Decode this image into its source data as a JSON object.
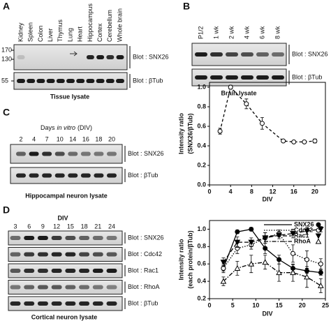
{
  "panel_a": {
    "letter": "A",
    "lanes": [
      "Kidney",
      "Spleen",
      "Colon",
      "Liver",
      "Thymus",
      "Lung",
      "Heart",
      "Hippocampus",
      "Cortex",
      "Cerebellum",
      "Whole brain"
    ],
    "mw_markers": [
      170,
      130,
      55
    ],
    "blots": [
      "Blot : SNX26",
      "Blot : βTub"
    ],
    "caption": "Tissue lysate"
  },
  "panel_b": {
    "letter": "B",
    "lanes": [
      "P1/2",
      "1 wk",
      "2 wk",
      "4 wk",
      "6 wk",
      "8 wk"
    ],
    "blots": [
      "Blot : SNX26",
      "Blot : βTub"
    ],
    "caption": "Brain lysate"
  },
  "panel_c": {
    "letter": "C",
    "title_parts": [
      "Days",
      "in vitro",
      "(DIV)"
    ],
    "lanes": [
      2,
      4,
      7,
      10,
      14,
      16,
      18,
      20
    ],
    "blots": [
      "Blot : SNX26",
      "Blot : βTub"
    ],
    "caption": "Hippocampal neuron lysate"
  },
  "panel_d": {
    "letter": "D",
    "title": "DIV",
    "lanes": [
      3,
      6,
      9,
      12,
      15,
      18,
      21,
      24
    ],
    "blots": [
      "Blot : SNX26",
      "Blot : Cdc42",
      "Blot : Rac1",
      "Blot : RhoA",
      "Blot : βTub"
    ],
    "caption": "Cortical neuron lysate"
  },
  "chart_data": [
    {
      "type": "line",
      "ylabel": [
        "Intensity ratio",
        "(SNX26/βTub)"
      ],
      "xlabel": "DIV",
      "x": [
        2,
        4,
        7,
        10,
        14,
        16,
        18,
        20
      ],
      "xlim": [
        0,
        22
      ],
      "xticks": [
        0,
        4,
        8,
        12,
        16,
        20
      ],
      "ylim": [
        0,
        1.05
      ],
      "yticks": [
        {
          "value": 0,
          "label": "0.0"
        },
        0.2,
        0.4,
        0.6,
        0.8,
        {
          "value": 1,
          "label": "1.0"
        }
      ],
      "series": [
        {
          "color": "#000000",
          "marker": "open-circle",
          "dash": "4 3",
          "values": [
            0.55,
            1.0,
            0.83,
            0.63,
            0.45,
            0.44,
            0.44,
            0.45
          ],
          "errors": [
            0.03,
            0.02,
            0.05,
            0.06,
            0.01,
            0.01,
            0.01,
            0.02
          ]
        }
      ]
    },
    {
      "type": "line",
      "ylabel": [
        "Intensity ratio",
        "(each protein/βTub)"
      ],
      "xlabel": "DIV",
      "x": [
        3,
        6,
        9,
        12,
        15,
        18,
        21,
        24
      ],
      "xlim": [
        0,
        25
      ],
      "xticks": [
        0,
        5,
        10,
        15,
        20,
        25
      ],
      "ylim": [
        0.2,
        1.1
      ],
      "yticks": [
        0.2,
        0.4,
        0.6,
        0.8,
        {
          "value": 1,
          "label": "1.0"
        }
      ],
      "series": [
        {
          "name": "SNX26",
          "color": "#000000",
          "marker": "filled-circle",
          "dash": "",
          "values": [
            0.55,
            0.97,
            1.0,
            0.78,
            0.65,
            0.55,
            0.52,
            0.5
          ],
          "errors": [
            0.03,
            0.02,
            0.02,
            0.06,
            0.05,
            0.04,
            0.03,
            0.03
          ]
        },
        {
          "name": "Cdc42",
          "color": "#000000",
          "marker": "open-circle",
          "dash": "1.5 2",
          "values": [
            0.55,
            0.78,
            0.82,
            0.9,
            0.95,
            0.72,
            0.65,
            0.6
          ],
          "errors": [
            0.05,
            0.06,
            0.05,
            0.06,
            0.04,
            0.1,
            0.1,
            0.06
          ]
        },
        {
          "name": "Rac1",
          "color": "#000000",
          "marker": "filled-triangle-down",
          "dash": "6 3",
          "values": [
            0.62,
            0.85,
            0.85,
            0.9,
            0.93,
            0.95,
            0.98,
            1.0
          ],
          "errors": [
            0.05,
            0.06,
            0.05,
            0.06,
            0.04,
            0.05,
            0.04,
            0.03
          ]
        },
        {
          "name": "RhoA",
          "color": "#000000",
          "marker": "open-triangle-up",
          "dash": "6 2 1.5 2",
          "values": [
            0.4,
            0.55,
            0.6,
            0.62,
            0.5,
            0.5,
            0.45,
            0.35
          ],
          "errors": [
            0.05,
            0.08,
            0.1,
            0.08,
            0.1,
            0.1,
            0.12,
            0.08
          ]
        }
      ]
    }
  ]
}
